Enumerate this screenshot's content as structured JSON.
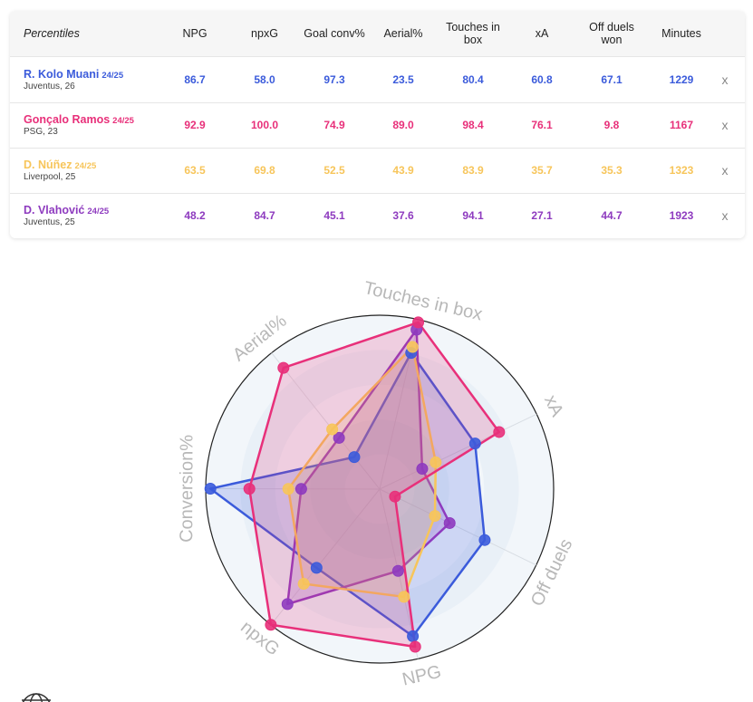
{
  "table": {
    "header_first": "Percentiles",
    "columns": [
      "NPG",
      "npxG",
      "Goal conv%",
      "Aerial%",
      "Touches in box",
      "xA",
      "Off duels won",
      "Minutes"
    ],
    "remove_label": "x",
    "players": [
      {
        "name": "R. Kolo Muani",
        "season": "24/25",
        "info": "Juventus, 26",
        "color": "#3b5bdb",
        "values": [
          "86.7",
          "58.0",
          "97.3",
          "23.5",
          "80.4",
          "60.8",
          "67.1",
          "1229"
        ]
      },
      {
        "name": "Gonçalo Ramos",
        "season": "24/25",
        "info": "PSG, 23",
        "color": "#e8307a",
        "values": [
          "92.9",
          "100.0",
          "74.9",
          "89.0",
          "98.4",
          "76.1",
          "9.8",
          "1167"
        ]
      },
      {
        "name": "D. Núñez",
        "season": "24/25",
        "info": "Liverpool, 25",
        "color": "#f7c55a",
        "values": [
          "63.5",
          "69.8",
          "52.5",
          "43.9",
          "83.9",
          "35.7",
          "35.3",
          "1323"
        ]
      },
      {
        "name": "D. Vlahović",
        "season": "24/25",
        "info": "Juventus, 25",
        "color": "#8e3bbf",
        "values": [
          "48.2",
          "84.7",
          "45.1",
          "37.6",
          "94.1",
          "27.1",
          "44.7",
          "1923"
        ]
      }
    ]
  },
  "chart_data": {
    "type": "radar",
    "axes": [
      "NPG",
      "npxG",
      "Conversion%",
      "Aerial%",
      "Touches in box",
      "xA",
      "Off duels"
    ],
    "range": [
      0,
      100
    ],
    "series": [
      {
        "name": "R. Kolo Muani",
        "color": "#3b5bdb",
        "values": [
          86.7,
          58.0,
          97.3,
          23.5,
          80.4,
          60.8,
          67.1
        ]
      },
      {
        "name": "D. Vlahović",
        "color": "#8e3bbf",
        "values": [
          48.2,
          84.7,
          45.1,
          37.6,
          94.1,
          27.1,
          44.7
        ]
      },
      {
        "name": "D. Núñez",
        "color": "#f7c55a",
        "values": [
          63.5,
          69.8,
          52.5,
          43.9,
          83.9,
          35.7,
          35.3
        ]
      },
      {
        "name": "Gonçalo Ramos",
        "color": "#e8307a",
        "values": [
          92.9,
          100.0,
          74.9,
          89.0,
          98.4,
          76.1,
          9.8
        ]
      }
    ]
  }
}
